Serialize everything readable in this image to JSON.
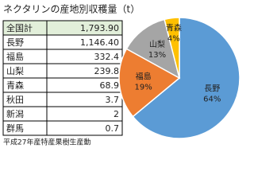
{
  "title": "ネクタリンの産地別収穫量（t）",
  "table": {
    "rows": [
      [
        "全国計",
        "1,793.90"
      ],
      [
        "長野",
        "1,146.40"
      ],
      [
        "福島",
        "332.4"
      ],
      [
        "山梨",
        "239.8"
      ],
      [
        "青森",
        "68.9"
      ],
      [
        "秋田",
        "3.7"
      ],
      [
        "新潟",
        "2"
      ],
      [
        "群馬",
        "0.7"
      ]
    ]
  },
  "source": "平成27年産特産果樹生産動",
  "chart_data": {
    "type": "pie",
    "categories": [
      "長野",
      "福島",
      "山梨",
      "青森"
    ],
    "values": [
      64,
      19,
      13,
      4
    ],
    "value_labels": [
      "64%",
      "19%",
      "13%",
      "4%"
    ],
    "colors": [
      "#5b9bd5",
      "#ed7d31",
      "#a5a5a5",
      "#ffc000"
    ]
  }
}
